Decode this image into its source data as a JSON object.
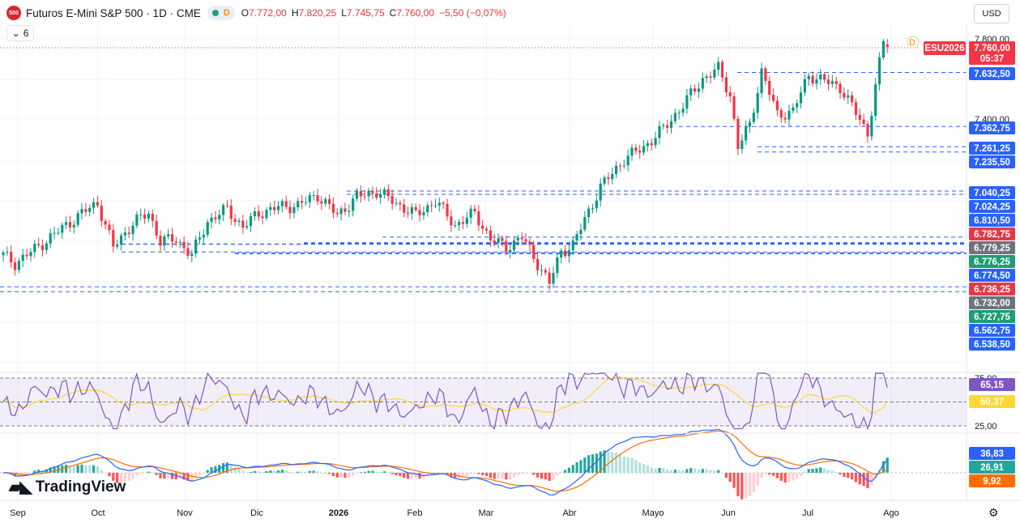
{
  "header": {
    "logo_text": "500",
    "title": "Futuros E-Mini S&P 500 · 1D · CME",
    "live_indicator": "D",
    "open_label": "O",
    "open": "7.772,00",
    "high_label": "H",
    "high": "7.820,25",
    "low_label": "L",
    "low": "7.745,75",
    "close_label": "C",
    "close": "7.760,00",
    "change": "−5,50 (−0,07%)"
  },
  "indicators_toggle": {
    "count": "6"
  },
  "currency": "USD",
  "brand": "TradingView",
  "price_axis": {
    "ticks": [
      "7.800,00",
      "7.400,00"
    ]
  },
  "rsi_axis": {
    "ticks": [
      "75,00",
      "25,00"
    ]
  },
  "current_price": {
    "symbol": "ESU2026",
    "price": "7.760,00",
    "countdown": "05:37",
    "marker": "D"
  },
  "price_labels": [
    {
      "text": "7.632,50",
      "value": 7632.5,
      "color": "#2962ff"
    },
    {
      "text": "7.362,75",
      "value": 7362.75,
      "color": "#2962ff"
    },
    {
      "text": "7.261,25",
      "value": 7261.25,
      "color": "#2962ff"
    },
    {
      "text": "7.235,50",
      "value": 7235.5,
      "color": "#2962ff"
    },
    {
      "text": "7.040,25",
      "value": 7040.25,
      "color": "#2962ff"
    },
    {
      "text": "7.024,25",
      "value": 7024.25,
      "color": "#2962ff"
    },
    {
      "text": "6.810,50",
      "value": 6810.5,
      "color": "#2962ff"
    },
    {
      "text": "6.782,75",
      "value": 6782.75,
      "color": "#e53946"
    },
    {
      "text": "6.779,25",
      "value": 6779.25,
      "color": "#6f737d"
    },
    {
      "text": "6.776,25",
      "value": 6776.25,
      "color": "#1f9c75"
    },
    {
      "text": "6.774,50",
      "value": 6774.5,
      "color": "#2962ff"
    },
    {
      "text": "6.736,25",
      "value": 6736.25,
      "color": "#e53946"
    },
    {
      "text": "6.732,00",
      "value": 6732.0,
      "color": "#6f737d"
    },
    {
      "text": "6.727,75",
      "value": 6727.75,
      "color": "#1f9c75"
    },
    {
      "text": "6.562,75",
      "value": 6562.75,
      "color": "#2962ff"
    },
    {
      "text": "6.538,50",
      "value": 6538.5,
      "color": "#2962ff"
    }
  ],
  "rsi_labels": [
    {
      "text": "65,15",
      "color": "#7e57c2"
    },
    {
      "text": "50,37",
      "color": "#fdd835"
    }
  ],
  "macd_labels": [
    {
      "text": "36,83",
      "color": "#2962ff"
    },
    {
      "text": "26,91",
      "color": "#26a69a"
    },
    {
      "text": "9,92",
      "color": "#ff6d00"
    }
  ],
  "time_axis": [
    "Sep",
    "Oct",
    "Nov",
    "Dic",
    "2026",
    "Feb",
    "Mar",
    "Abr",
    "Mayo",
    "Jun",
    "Jul",
    "Ago"
  ],
  "colors": {
    "up": "#089981",
    "down": "#f23645",
    "level": "#2962ff",
    "rsi": "#7e57c2",
    "rsi_ma": "#fdd835"
  },
  "chart_data": {
    "type": "candlestick",
    "anchors": [
      [
        0,
        6720
      ],
      [
        3,
        6680
      ],
      [
        8,
        6750
      ],
      [
        20,
        6930
      ],
      [
        24,
        6980
      ],
      [
        28,
        6760
      ],
      [
        33,
        6880
      ],
      [
        37,
        6930
      ],
      [
        40,
        6790
      ],
      [
        44,
        6800
      ],
      [
        48,
        6720
      ],
      [
        52,
        6890
      ],
      [
        57,
        6950
      ],
      [
        61,
        6860
      ],
      [
        65,
        6930
      ],
      [
        70,
        6960
      ],
      [
        75,
        6970
      ],
      [
        80,
        7020
      ],
      [
        85,
        6920
      ],
      [
        90,
        7010
      ],
      [
        95,
        7040
      ],
      [
        100,
        6980
      ],
      [
        105,
        6920
      ],
      [
        110,
        6990
      ],
      [
        115,
        6870
      ],
      [
        120,
        6930
      ],
      [
        124,
        6800
      ],
      [
        128,
        6760
      ],
      [
        132,
        6810
      ],
      [
        136,
        6680
      ],
      [
        139,
        6580
      ],
      [
        142,
        6740
      ],
      [
        145,
        6770
      ],
      [
        148,
        6900
      ],
      [
        152,
        7060
      ],
      [
        158,
        7200
      ],
      [
        163,
        7260
      ],
      [
        168,
        7350
      ],
      [
        173,
        7470
      ],
      [
        178,
        7600
      ],
      [
        182,
        7650
      ],
      [
        185,
        7520
      ],
      [
        187,
        7260
      ],
      [
        190,
        7370
      ],
      [
        193,
        7640
      ],
      [
        197,
        7420
      ],
      [
        201,
        7440
      ],
      [
        205,
        7620
      ],
      [
        209,
        7590
      ],
      [
        213,
        7560
      ],
      [
        217,
        7430
      ],
      [
        220,
        7330
      ],
      [
        222,
        7560
      ],
      [
        224,
        7790
      ],
      [
        225,
        7760
      ]
    ],
    "levels": [
      7632.5,
      7362.75,
      7261.25,
      7235.5,
      7040.25,
      7024.25,
      6810.5,
      6782.75,
      6779.25,
      6776.25,
      6774.5,
      6736.25,
      6732.0,
      6727.75,
      6562.75,
      6538.5
    ]
  }
}
